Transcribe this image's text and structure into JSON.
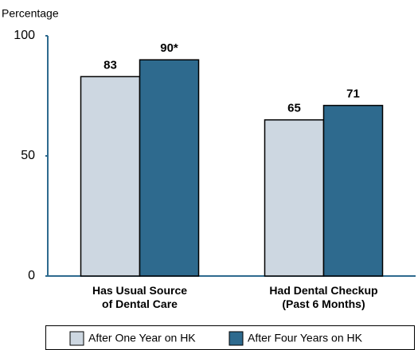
{
  "chart_data": {
    "type": "bar",
    "y_label": "Percentage",
    "categories": [
      "Has Usual Source\nof Dental Care",
      "Had Dental Checkup\n(Past 6 Months)"
    ],
    "series": [
      {
        "name": "After One Year on HK",
        "color": "#cdd7e1",
        "values": [
          83,
          65
        ],
        "value_labels": [
          "83",
          "65"
        ]
      },
      {
        "name": "After Four Years on HK",
        "color": "#2e6a8e",
        "values": [
          90,
          71
        ],
        "value_labels": [
          "90*",
          "71"
        ]
      }
    ],
    "ylim": [
      0,
      100
    ],
    "yticks": [
      0,
      50,
      100
    ],
    "grid": false,
    "legend": "bottom"
  }
}
